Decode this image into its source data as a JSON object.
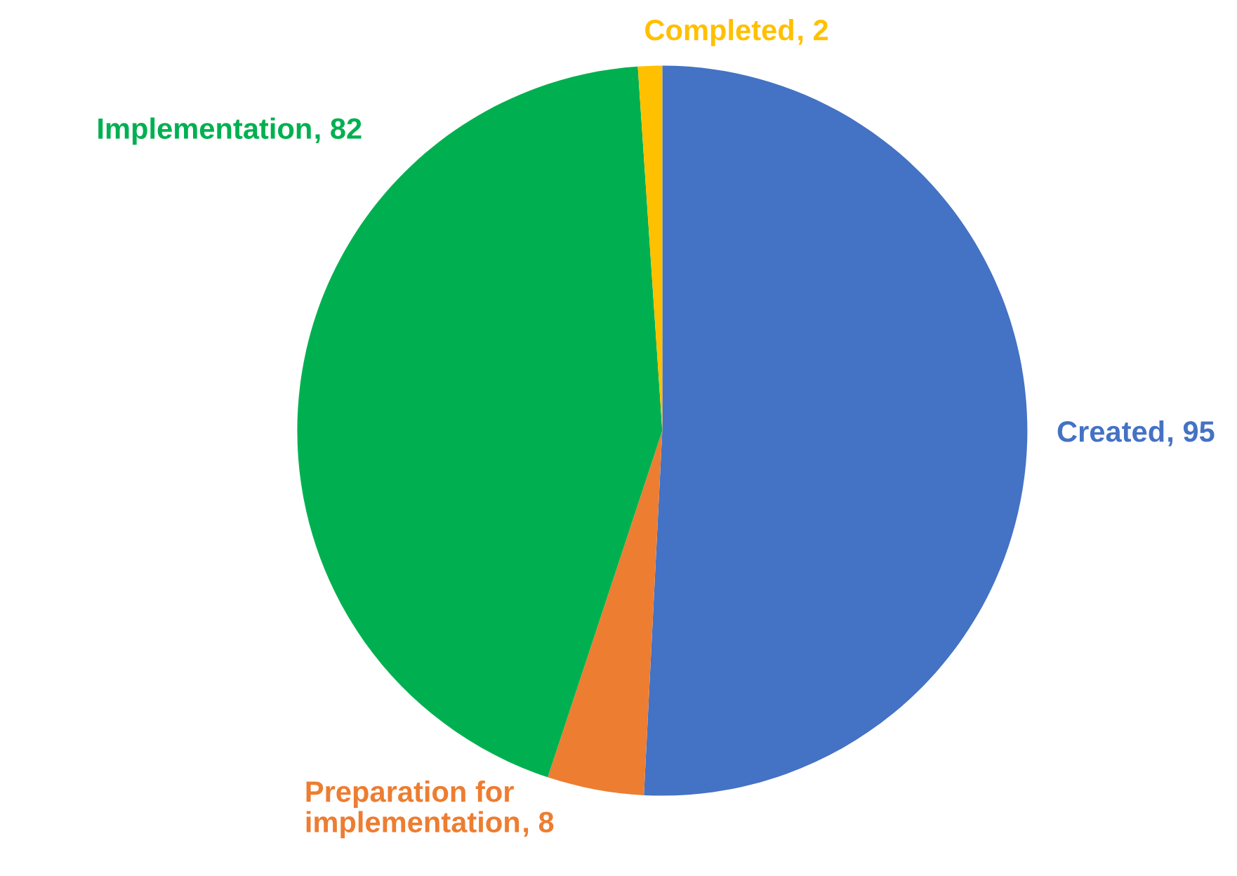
{
  "chart_data": {
    "type": "pie",
    "categories": [
      "Created",
      "Preparation for implementation",
      "Implementation",
      "Completed"
    ],
    "values": [
      95,
      8,
      82,
      2
    ],
    "colors": [
      "#4472c4",
      "#ed7d31",
      "#00b050",
      "#ffc000"
    ],
    "value_labels": [
      ", 95",
      ", 8",
      ", 82",
      ", 2"
    ]
  }
}
